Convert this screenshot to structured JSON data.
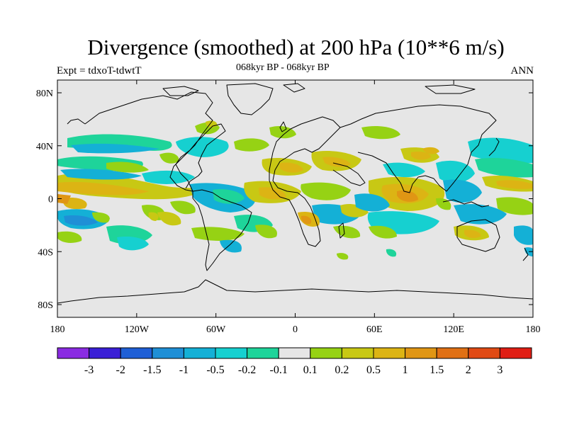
{
  "title": "Divergence (smoothed) at 200 hPa (10**6 m/s)",
  "subtitle_left": "Expt = tdxoT-tdwtT",
  "subtitle_center": "068kyr BP - 068kyr BP",
  "subtitle_right": "ANN",
  "map": {
    "projection": "cylindrical-equidistant",
    "background_color": "#e6e6e6",
    "lat_ticks": [
      "80N",
      "40N",
      "0",
      "40S",
      "80S"
    ],
    "lon_ticks": [
      "180",
      "120W",
      "60W",
      "0",
      "60E",
      "120E",
      "180"
    ]
  },
  "colorbar": {
    "colors": [
      "#8a2be2",
      "#3a1fd6",
      "#1f5fd6",
      "#1f8fd6",
      "#14b0d6",
      "#16d0d0",
      "#1ed49a",
      "#e6e6e6",
      "#96d214",
      "#c8c814",
      "#dcb414",
      "#e09614",
      "#e07014",
      "#e04a14",
      "#e01e14"
    ],
    "labels": [
      "-3",
      "-2",
      "-1.5",
      "-1",
      "-0.5",
      "-0.2",
      "-0.1",
      "0.1",
      "0.2",
      "0.5",
      "1",
      "1.5",
      "2",
      "3"
    ]
  }
}
